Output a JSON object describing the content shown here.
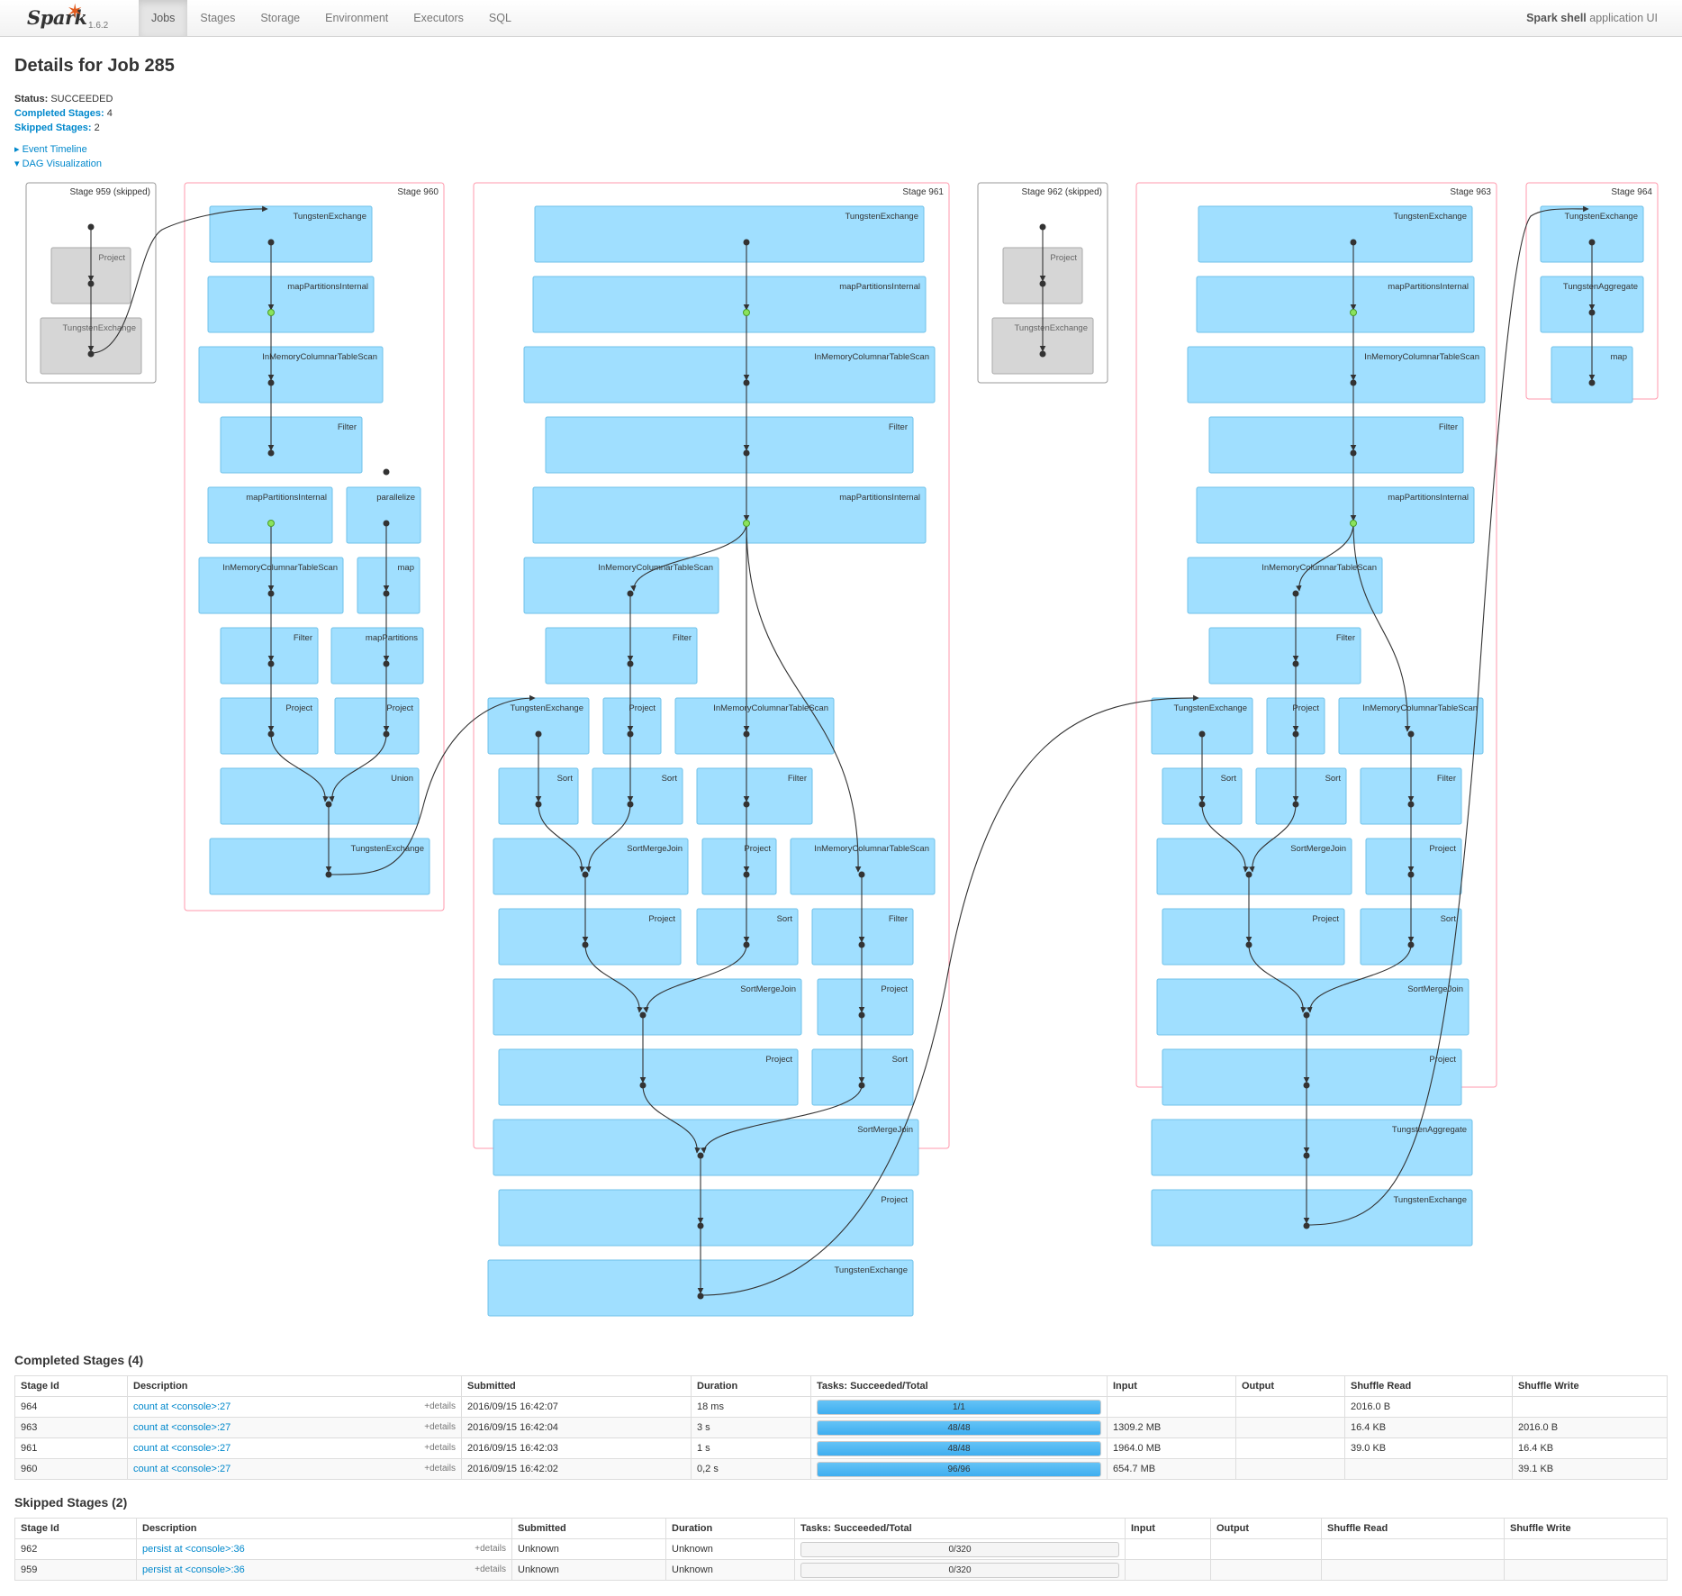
{
  "nav": {
    "brand": "Spark",
    "version": "1.6.2",
    "tabs": [
      "Jobs",
      "Stages",
      "Storage",
      "Environment",
      "Executors",
      "SQL"
    ],
    "active_tab": "Jobs",
    "app_name_bold": "Spark shell",
    "app_name_rest": "application UI"
  },
  "page": {
    "title": "Details for Job 285",
    "status_label": "Status:",
    "status_value": "SUCCEEDED",
    "completed_label": "Completed Stages:",
    "completed_value": "4",
    "skipped_label": "Skipped Stages:",
    "skipped_value": "2",
    "event_timeline": "Event Timeline",
    "dag_visualization": "DAG Visualization"
  },
  "dag": {
    "stages": [
      {
        "label": "Stage 959 (skipped)",
        "skipped": true,
        "nodes": [
          "Project",
          "TungstenExchange"
        ]
      },
      {
        "label": "Stage 960",
        "skipped": false,
        "nodes": [
          "TungstenExchange",
          "mapPartitionsInternal",
          "InMemoryColumnarTableScan",
          "Filter",
          "mapPartitionsInternal",
          "parallelize",
          "InMemoryColumnarTableScan",
          "map",
          "Filter",
          "mapPartitions",
          "Project",
          "Project",
          "Union",
          "TungstenExchange"
        ]
      },
      {
        "label": "Stage 961",
        "skipped": false,
        "nodes": [
          "TungstenExchange",
          "mapPartitionsInternal",
          "InMemoryColumnarTableScan",
          "Filter",
          "mapPartitionsInternal",
          "InMemoryColumnarTableScan",
          "Filter",
          "TungstenExchange",
          "Project",
          "InMemoryColumnarTableScan",
          "Sort",
          "Sort",
          "Filter",
          "SortMergeJoin",
          "Project",
          "InMemoryColumnarTableScan",
          "Project",
          "Sort",
          "Filter",
          "SortMergeJoin",
          "Project",
          "Project",
          "Sort",
          "SortMergeJoin",
          "Project",
          "TungstenExchange"
        ]
      },
      {
        "label": "Stage 962 (skipped)",
        "skipped": true,
        "nodes": [
          "Project",
          "TungstenExchange"
        ]
      },
      {
        "label": "Stage 963",
        "skipped": false,
        "nodes": [
          "TungstenExchange",
          "mapPartitionsInternal",
          "InMemoryColumnarTableScan",
          "Filter",
          "mapPartitionsInternal",
          "InMemoryColumnarTableScan",
          "Filter",
          "TungstenExchange",
          "Project",
          "InMemoryColumnarTableScan",
          "Sort",
          "Sort",
          "Filter",
          "SortMergeJoin",
          "Project",
          "Project",
          "Sort",
          "SortMergeJoin",
          "Project",
          "TungstenAggregate",
          "TungstenExchange"
        ]
      },
      {
        "label": "Stage 964",
        "skipped": false,
        "nodes": [
          "TungstenExchange",
          "TungstenAggregate",
          "map"
        ]
      }
    ]
  },
  "completed": {
    "heading": "Completed Stages (4)",
    "columns": [
      "Stage Id",
      "Description",
      "Submitted",
      "Duration",
      "Tasks: Succeeded/Total",
      "Input",
      "Output",
      "Shuffle Read",
      "Shuffle Write"
    ],
    "rows": [
      {
        "id": "964",
        "desc": "count at <console>:27",
        "details": "+details",
        "submitted": "2016/09/15 16:42:07",
        "duration": "18 ms",
        "tasks": "1/1",
        "progress": 1.0,
        "input": "",
        "output": "",
        "shuffle_read": "2016.0 B",
        "shuffle_write": ""
      },
      {
        "id": "963",
        "desc": "count at <console>:27",
        "details": "+details",
        "submitted": "2016/09/15 16:42:04",
        "duration": "3 s",
        "tasks": "48/48",
        "progress": 1.0,
        "input": "1309.2 MB",
        "output": "",
        "shuffle_read": "16.4 KB",
        "shuffle_write": "2016.0 B"
      },
      {
        "id": "961",
        "desc": "count at <console>:27",
        "details": "+details",
        "submitted": "2016/09/15 16:42:03",
        "duration": "1 s",
        "tasks": "48/48",
        "progress": 1.0,
        "input": "1964.0 MB",
        "output": "",
        "shuffle_read": "39.0 KB",
        "shuffle_write": "16.4 KB"
      },
      {
        "id": "960",
        "desc": "count at <console>:27",
        "details": "+details",
        "submitted": "2016/09/15 16:42:02",
        "duration": "0,2 s",
        "tasks": "96/96",
        "progress": 1.0,
        "input": "654.7 MB",
        "output": "",
        "shuffle_read": "",
        "shuffle_write": "39.1 KB"
      }
    ]
  },
  "skipped": {
    "heading": "Skipped Stages (2)",
    "columns": [
      "Stage Id",
      "Description",
      "Submitted",
      "Duration",
      "Tasks: Succeeded/Total",
      "Input",
      "Output",
      "Shuffle Read",
      "Shuffle Write"
    ],
    "rows": [
      {
        "id": "962",
        "desc": "persist at <console>:36",
        "details": "+details",
        "submitted": "Unknown",
        "duration": "Unknown",
        "tasks": "0/320",
        "progress": 0,
        "input": "",
        "output": "",
        "shuffle_read": "",
        "shuffle_write": ""
      },
      {
        "id": "959",
        "desc": "persist at <console>:36",
        "details": "+details",
        "submitted": "Unknown",
        "duration": "Unknown",
        "tasks": "0/320",
        "progress": 0,
        "input": "",
        "output": "",
        "shuffle_read": "",
        "shuffle_write": ""
      }
    ]
  },
  "colors": {
    "node_fill": "#a0dfff",
    "node_stroke": "#6fc2e9",
    "skipped_fill": "#d6d6d6",
    "stage_border": "#ff99ac",
    "skipped_border": "#999999",
    "cached_dot": "#8be35c",
    "link": "#0088cc"
  }
}
